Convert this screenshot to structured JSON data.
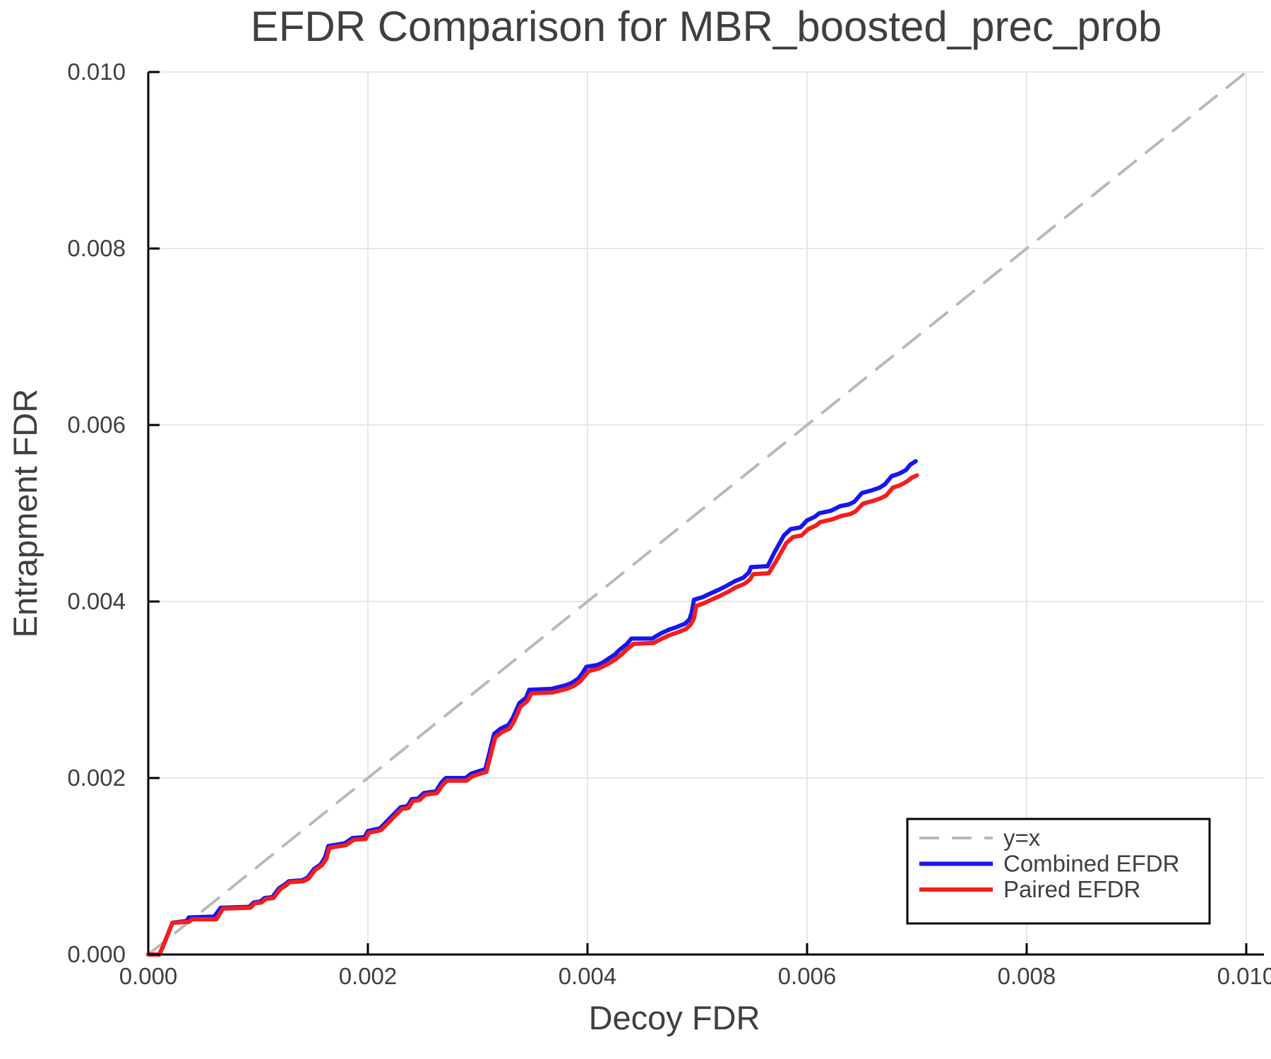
{
  "chart_data": {
    "type": "line",
    "title": "EFDR Comparison for MBR_boosted_prec_prob",
    "xlabel": "Decoy FDR",
    "ylabel": "Entrapment FDR",
    "xlim": [
      0,
      0.010161
    ],
    "ylim": [
      0,
      0.01
    ],
    "grid": true,
    "xticks": [
      0.0,
      0.002,
      0.004,
      0.006,
      0.008,
      0.01
    ],
    "xtick_labels": [
      "0.000",
      "0.002",
      "0.004",
      "0.006",
      "0.008",
      "0.010"
    ],
    "yticks": [
      0.0,
      0.002,
      0.004,
      0.006,
      0.008,
      0.01
    ],
    "ytick_labels": [
      "0.000",
      "0.002",
      "0.004",
      "0.006",
      "0.008",
      "0.010"
    ],
    "legend": {
      "position": "bottom-right"
    },
    "colors": {
      "identity": "#b9b9b9",
      "combined": "#1616f0",
      "paired": "#f51d1d",
      "grid": "#e7e7e7",
      "axis": "#000000",
      "text": "#3f3f3f"
    },
    "series": [
      {
        "name": "y=x",
        "style": "dashed",
        "color": "#b9b9b9",
        "points": [
          [
            0.0,
            0.0
          ],
          [
            0.01,
            0.01
          ]
        ]
      },
      {
        "name": "Combined EFDR",
        "style": "solid",
        "color": "#1616f0",
        "points": [
          [
            0.0,
            0.0
          ],
          [
            0.0001,
            0.0
          ],
          [
            0.00013,
            8e-05
          ],
          [
            0.00022,
            0.00036
          ],
          [
            0.00035,
            0.00038
          ],
          [
            0.00037,
            0.00042
          ],
          [
            0.0006,
            0.00043
          ],
          [
            0.00066,
            0.00053
          ],
          [
            0.00092,
            0.00054
          ],
          [
            0.00096,
            0.00059
          ],
          [
            0.00102,
            0.0006
          ],
          [
            0.00106,
            0.00064
          ],
          [
            0.00113,
            0.00065
          ],
          [
            0.00119,
            0.00075
          ],
          [
            0.00124,
            0.00079
          ],
          [
            0.00128,
            0.00083
          ],
          [
            0.0014,
            0.00084
          ],
          [
            0.00145,
            0.00087
          ],
          [
            0.00151,
            0.00097
          ],
          [
            0.00157,
            0.00102
          ],
          [
            0.00161,
            0.0011
          ],
          [
            0.00164,
            0.00123
          ],
          [
            0.00179,
            0.00126
          ],
          [
            0.00186,
            0.00132
          ],
          [
            0.00197,
            0.00133
          ],
          [
            0.002,
            0.0014
          ],
          [
            0.00211,
            0.00143
          ],
          [
            0.00222,
            0.00157
          ],
          [
            0.0023,
            0.00167
          ],
          [
            0.00236,
            0.00168
          ],
          [
            0.0024,
            0.00176
          ],
          [
            0.00246,
            0.00177
          ],
          [
            0.00251,
            0.00183
          ],
          [
            0.00262,
            0.00185
          ],
          [
            0.00267,
            0.00195
          ],
          [
            0.00271,
            0.002
          ],
          [
            0.00289,
            0.002
          ],
          [
            0.00294,
            0.00205
          ],
          [
            0.00307,
            0.0021
          ],
          [
            0.00311,
            0.0023
          ],
          [
            0.00315,
            0.0025
          ],
          [
            0.00321,
            0.00256
          ],
          [
            0.00328,
            0.0026
          ],
          [
            0.00332,
            0.00268
          ],
          [
            0.00338,
            0.00285
          ],
          [
            0.00344,
            0.00291
          ],
          [
            0.00347,
            0.003
          ],
          [
            0.00367,
            0.00301
          ],
          [
            0.0038,
            0.00305
          ],
          [
            0.00386,
            0.00308
          ],
          [
            0.00392,
            0.00313
          ],
          [
            0.00396,
            0.0032
          ],
          [
            0.00399,
            0.00326
          ],
          [
            0.00409,
            0.00328
          ],
          [
            0.00414,
            0.00331
          ],
          [
            0.0042,
            0.00336
          ],
          [
            0.00425,
            0.0034
          ],
          [
            0.00429,
            0.00345
          ],
          [
            0.00436,
            0.00352
          ],
          [
            0.0044,
            0.00358
          ],
          [
            0.00459,
            0.00358
          ],
          [
            0.00467,
            0.00364
          ],
          [
            0.00474,
            0.00368
          ],
          [
            0.00481,
            0.00371
          ],
          [
            0.00489,
            0.00375
          ],
          [
            0.00493,
            0.0038
          ],
          [
            0.00495,
            0.00388
          ],
          [
            0.00497,
            0.00402
          ],
          [
            0.00505,
            0.00405
          ],
          [
            0.0051,
            0.00408
          ],
          [
            0.00519,
            0.00413
          ],
          [
            0.00527,
            0.00418
          ],
          [
            0.00534,
            0.00423
          ],
          [
            0.00542,
            0.00427
          ],
          [
            0.00547,
            0.00433
          ],
          [
            0.00549,
            0.00439
          ],
          [
            0.00564,
            0.0044
          ],
          [
            0.0057,
            0.00455
          ],
          [
            0.00579,
            0.00475
          ],
          [
            0.00585,
            0.00482
          ],
          [
            0.00594,
            0.00484
          ],
          [
            0.006,
            0.00492
          ],
          [
            0.00607,
            0.00496
          ],
          [
            0.00611,
            0.005
          ],
          [
            0.00622,
            0.00503
          ],
          [
            0.0063,
            0.00508
          ],
          [
            0.00638,
            0.0051
          ],
          [
            0.00643,
            0.00513
          ],
          [
            0.0065,
            0.00523
          ],
          [
            0.00659,
            0.00526
          ],
          [
            0.00666,
            0.00529
          ],
          [
            0.00671,
            0.00533
          ],
          [
            0.00677,
            0.00542
          ],
          [
            0.00684,
            0.00545
          ],
          [
            0.0069,
            0.00549
          ],
          [
            0.00694,
            0.00555
          ],
          [
            0.00699,
            0.00559
          ]
        ]
      },
      {
        "name": "Paired EFDR",
        "style": "solid",
        "color": "#f51d1d",
        "points": [
          [
            0.0,
            0.0
          ],
          [
            0.0001,
            0.0
          ],
          [
            0.00013,
            8e-05
          ],
          [
            0.00022,
            0.00036
          ],
          [
            0.00037,
            0.00037
          ],
          [
            0.0004,
            0.0004
          ],
          [
            0.00062,
            0.0004
          ],
          [
            0.00068,
            0.00052
          ],
          [
            0.00093,
            0.00053
          ],
          [
            0.00097,
            0.00058
          ],
          [
            0.00103,
            0.00059
          ],
          [
            0.00107,
            0.00063
          ],
          [
            0.00114,
            0.00064
          ],
          [
            0.0012,
            0.00074
          ],
          [
            0.00125,
            0.00078
          ],
          [
            0.00129,
            0.00082
          ],
          [
            0.00141,
            0.00083
          ],
          [
            0.00146,
            0.00086
          ],
          [
            0.00152,
            0.00096
          ],
          [
            0.00158,
            0.00101
          ],
          [
            0.00162,
            0.00108
          ],
          [
            0.00165,
            0.00121
          ],
          [
            0.0018,
            0.00124
          ],
          [
            0.00187,
            0.0013
          ],
          [
            0.00198,
            0.00131
          ],
          [
            0.00201,
            0.00138
          ],
          [
            0.00212,
            0.00141
          ],
          [
            0.00223,
            0.00155
          ],
          [
            0.00231,
            0.00165
          ],
          [
            0.00237,
            0.00166
          ],
          [
            0.00241,
            0.00174
          ],
          [
            0.00247,
            0.00175
          ],
          [
            0.00252,
            0.00181
          ],
          [
            0.00263,
            0.00183
          ],
          [
            0.00268,
            0.00192
          ],
          [
            0.00272,
            0.00197
          ],
          [
            0.0029,
            0.00197
          ],
          [
            0.00295,
            0.00202
          ],
          [
            0.00308,
            0.00207
          ],
          [
            0.00312,
            0.00227
          ],
          [
            0.00316,
            0.00246
          ],
          [
            0.00322,
            0.00252
          ],
          [
            0.00329,
            0.00256
          ],
          [
            0.00333,
            0.00264
          ],
          [
            0.00339,
            0.00281
          ],
          [
            0.00345,
            0.00287
          ],
          [
            0.00349,
            0.00296
          ],
          [
            0.00368,
            0.00297
          ],
          [
            0.00381,
            0.00301
          ],
          [
            0.00387,
            0.00304
          ],
          [
            0.00393,
            0.00309
          ],
          [
            0.00397,
            0.00315
          ],
          [
            0.00401,
            0.00321
          ],
          [
            0.0041,
            0.00324
          ],
          [
            0.00415,
            0.00327
          ],
          [
            0.00421,
            0.00331
          ],
          [
            0.00426,
            0.00335
          ],
          [
            0.00431,
            0.0034
          ],
          [
            0.00437,
            0.00347
          ],
          [
            0.00442,
            0.00352
          ],
          [
            0.0046,
            0.00353
          ],
          [
            0.00468,
            0.00358
          ],
          [
            0.00475,
            0.00362
          ],
          [
            0.00482,
            0.00365
          ],
          [
            0.0049,
            0.00369
          ],
          [
            0.00494,
            0.00374
          ],
          [
            0.00497,
            0.00381
          ],
          [
            0.00499,
            0.00395
          ],
          [
            0.00506,
            0.00398
          ],
          [
            0.00511,
            0.00401
          ],
          [
            0.0052,
            0.00406
          ],
          [
            0.00528,
            0.00411
          ],
          [
            0.00535,
            0.00416
          ],
          [
            0.00543,
            0.0042
          ],
          [
            0.00548,
            0.00425
          ],
          [
            0.00551,
            0.00431
          ],
          [
            0.00565,
            0.00432
          ],
          [
            0.00572,
            0.00446
          ],
          [
            0.00581,
            0.00466
          ],
          [
            0.00587,
            0.00473
          ],
          [
            0.00595,
            0.00475
          ],
          [
            0.00601,
            0.00482
          ],
          [
            0.00608,
            0.00486
          ],
          [
            0.00612,
            0.0049
          ],
          [
            0.00623,
            0.00493
          ],
          [
            0.00631,
            0.00497
          ],
          [
            0.00639,
            0.00499
          ],
          [
            0.00644,
            0.00502
          ],
          [
            0.00651,
            0.00511
          ],
          [
            0.0066,
            0.00514
          ],
          [
            0.00667,
            0.00517
          ],
          [
            0.00672,
            0.0052
          ],
          [
            0.00678,
            0.00529
          ],
          [
            0.00685,
            0.00532
          ],
          [
            0.00691,
            0.00536
          ],
          [
            0.00695,
            0.0054
          ],
          [
            0.007,
            0.00543
          ]
        ]
      }
    ]
  }
}
